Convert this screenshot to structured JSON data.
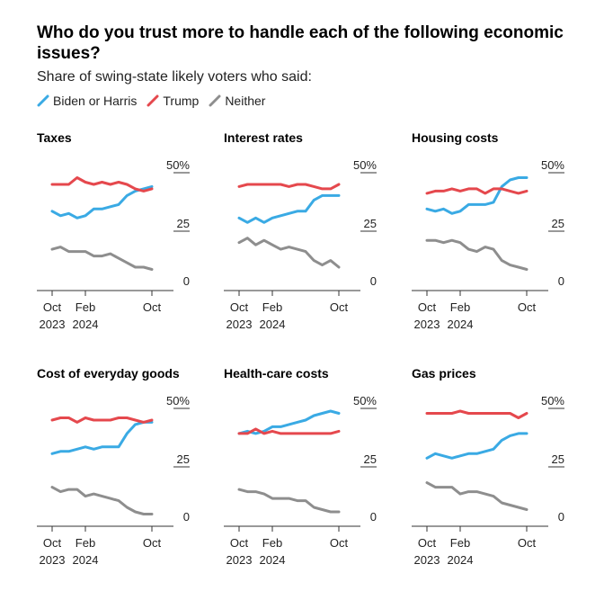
{
  "title": "Who do you trust more to handle each of the following economic issues?",
  "subtitle": "Share of swing-state likely voters who said:",
  "colors": {
    "biden": "#3aaae4",
    "trump": "#e5484d",
    "neither": "#8e8e8e",
    "axis": "#333333"
  },
  "legend": [
    {
      "label": "Biden or Harris",
      "color": "#3aaae4"
    },
    {
      "label": "Trump",
      "color": "#e5484d"
    },
    {
      "label": "Neither",
      "color": "#8e8e8e"
    }
  ],
  "x_ticks": [
    {
      "month": 0,
      "line1": "Oct",
      "line2": "2023"
    },
    {
      "month": 4,
      "line1": "Feb",
      "line2": "2024"
    },
    {
      "month": 12,
      "line1": "Oct",
      "line2": ""
    }
  ],
  "y_ticks": [
    {
      "value": 50,
      "label": "50%"
    },
    {
      "value": 25,
      "label": "25"
    },
    {
      "value": 0,
      "label": "0"
    }
  ],
  "chart_data": {
    "type": "line",
    "ylim": [
      0,
      55
    ],
    "xlim": [
      "2023-10",
      "2024-10"
    ],
    "x": [
      "2023-10",
      "2023-11",
      "2023-12",
      "2024-01",
      "2024-02",
      "2024-03",
      "2024-04",
      "2024-05",
      "2024-06",
      "2024-07",
      "2024-08",
      "2024-09",
      "2024-10"
    ],
    "panels": [
      {
        "title": "Taxes",
        "series": [
          {
            "name": "Biden or Harris",
            "values": [
              34,
              32,
              33,
              31,
              32,
              35,
              35,
              36,
              37,
              41,
              43,
              44,
              45
            ]
          },
          {
            "name": "Trump",
            "values": [
              46,
              46,
              46,
              49,
              47,
              46,
              47,
              46,
              47,
              46,
              44,
              43,
              44
            ]
          },
          {
            "name": "Neither",
            "values": [
              17,
              18,
              16,
              16,
              16,
              14,
              14,
              15,
              13,
              11,
              9,
              9,
              8
            ]
          }
        ]
      },
      {
        "title": "Interest rates",
        "series": [
          {
            "name": "Biden or Harris",
            "values": [
              31,
              29,
              31,
              29,
              31,
              32,
              33,
              34,
              34,
              39,
              41,
              41,
              41
            ]
          },
          {
            "name": "Trump",
            "values": [
              45,
              46,
              46,
              46,
              46,
              46,
              45,
              46,
              46,
              45,
              44,
              44,
              46
            ]
          },
          {
            "name": "Neither",
            "values": [
              20,
              22,
              19,
              21,
              19,
              17,
              18,
              17,
              16,
              12,
              10,
              12,
              9
            ]
          }
        ]
      },
      {
        "title": "Housing costs",
        "series": [
          {
            "name": "Biden or Harris",
            "values": [
              35,
              34,
              35,
              33,
              34,
              37,
              37,
              37,
              38,
              45,
              48,
              49,
              49
            ]
          },
          {
            "name": "Trump",
            "values": [
              42,
              43,
              43,
              44,
              43,
              44,
              44,
              42,
              44,
              44,
              43,
              42,
              43
            ]
          },
          {
            "name": "Neither",
            "values": [
              21,
              21,
              20,
              21,
              20,
              17,
              16,
              18,
              17,
              12,
              10,
              9,
              8
            ]
          }
        ]
      },
      {
        "title": "Cost of everyday goods",
        "series": [
          {
            "name": "Biden or Harris",
            "values": [
              31,
              32,
              32,
              33,
              34,
              33,
              34,
              34,
              34,
              40,
              44,
              45,
              45
            ]
          },
          {
            "name": "Trump",
            "values": [
              46,
              47,
              47,
              45,
              47,
              46,
              46,
              46,
              47,
              47,
              46,
              45,
              46
            ]
          },
          {
            "name": "Neither",
            "values": [
              16,
              14,
              15,
              15,
              12,
              13,
              12,
              11,
              10,
              7,
              5,
              4,
              4
            ]
          }
        ]
      },
      {
        "title": "Health-care costs",
        "series": [
          {
            "name": "Biden or Harris",
            "values": [
              40,
              41,
              40,
              41,
              43,
              43,
              44,
              45,
              46,
              48,
              49,
              50,
              49
            ]
          },
          {
            "name": "Trump",
            "values": [
              40,
              40,
              42,
              40,
              41,
              40,
              40,
              40,
              40,
              40,
              40,
              40,
              41
            ]
          },
          {
            "name": "Neither",
            "values": [
              15,
              14,
              14,
              13,
              11,
              11,
              11,
              10,
              10,
              7,
              6,
              5,
              5
            ]
          }
        ]
      },
      {
        "title": "Gas prices",
        "series": [
          {
            "name": "Biden or Harris",
            "values": [
              29,
              31,
              30,
              29,
              30,
              31,
              31,
              32,
              33,
              37,
              39,
              40,
              40
            ]
          },
          {
            "name": "Trump",
            "values": [
              49,
              49,
              49,
              49,
              50,
              49,
              49,
              49,
              49,
              49,
              49,
              47,
              49
            ]
          },
          {
            "name": "Neither",
            "values": [
              18,
              16,
              16,
              16,
              13,
              14,
              14,
              13,
              12,
              9,
              8,
              7,
              6
            ]
          }
        ]
      }
    ]
  }
}
